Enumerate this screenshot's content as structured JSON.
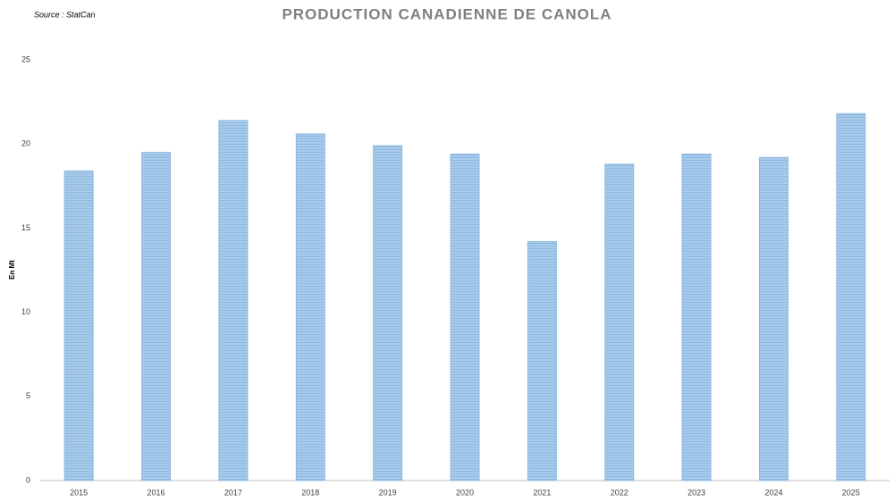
{
  "chart_data": {
    "type": "bar",
    "title": "PRODUCTION CANADIENNE DE CANOLA",
    "source": "Source : StatCan",
    "y_label": "En Mt",
    "categories": [
      "2015",
      "2016",
      "2017",
      "2018",
      "2019",
      "2020",
      "2021",
      "2022",
      "2023",
      "2024",
      "2025"
    ],
    "values": [
      18.4,
      19.5,
      21.4,
      20.6,
      19.9,
      19.4,
      14.2,
      18.8,
      19.4,
      19.2,
      21.8
    ],
    "color": "#9dc3e6",
    "ylim": [
      0,
      25
    ],
    "yticks": [
      0,
      5,
      10,
      15,
      20,
      25
    ],
    "grid": false
  }
}
